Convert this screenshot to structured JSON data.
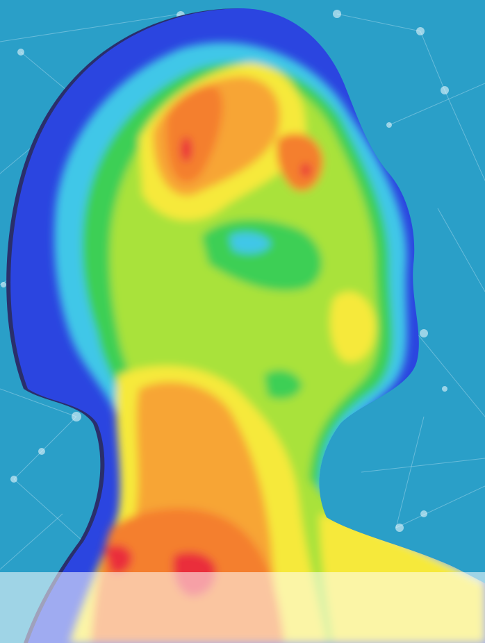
{
  "image": {
    "subject": "thermal-profile-silhouette",
    "colors": {
      "background": "#2a9fc8",
      "network": "#d9f1fb",
      "outline": "#2a2f6b",
      "cold": "#2b45e0",
      "cool": "#3fc7e8",
      "neutral": "#3ccf55",
      "mild": "#a9e23a",
      "warm": "#f6e93a",
      "hot": "#f7a534",
      "hotter": "#f47f2e",
      "hottest": "#ea2f3b",
      "bottom_fade": "#ffffff"
    }
  }
}
